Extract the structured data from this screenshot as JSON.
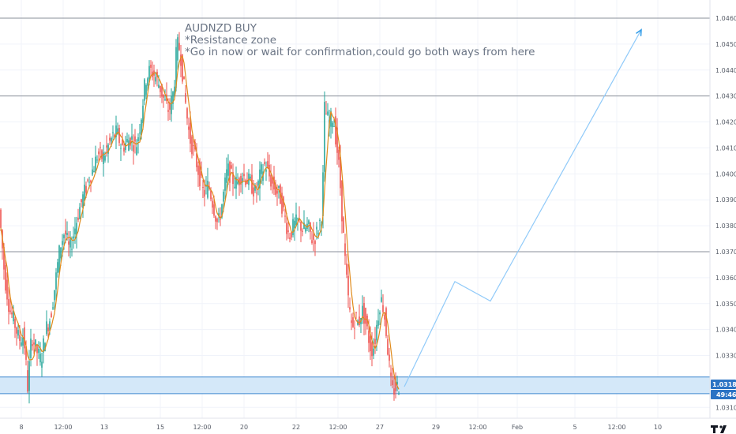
{
  "chart_data": {
    "type": "candlestick",
    "symbol": "AUDNZD",
    "annotations": [
      "AUDNZD BUY",
      "*Resistance zone",
      "*Go in now or wait for confirmation,could go both ways from here"
    ],
    "yticks": [
      "1.04600",
      "1.04500",
      "1.04400",
      "1.04300",
      "1.04200",
      "1.04100",
      "1.04000",
      "1.03900",
      "1.03800",
      "1.03700",
      "1.03600",
      "1.03500",
      "1.03400",
      "1.03300",
      "1.03100"
    ],
    "ytick_values": [
      1.046,
      1.045,
      1.044,
      1.043,
      1.042,
      1.041,
      1.04,
      1.039,
      1.038,
      1.037,
      1.036,
      1.035,
      1.034,
      1.033,
      1.031
    ],
    "ylim": [
      1.0307,
      1.04675
    ],
    "xticks": [
      {
        "label": "8",
        "slot": 27
      },
      {
        "label": "12:00",
        "slot": 80
      },
      {
        "label": "13",
        "slot": 132
      },
      {
        "label": "15",
        "slot": 203
      },
      {
        "label": "12:00",
        "slot": 256
      },
      {
        "label": "20",
        "slot": 309
      },
      {
        "label": "22",
        "slot": 375
      },
      {
        "label": "12:00",
        "slot": 428
      },
      {
        "label": "27",
        "slot": 481
      },
      {
        "label": "29",
        "slot": 552
      },
      {
        "label": "12:00",
        "slot": 605
      },
      {
        "label": "Feb",
        "slot": 655
      },
      {
        "label": "5",
        "slot": 728
      },
      {
        "label": "12:00",
        "slot": 781
      },
      {
        "label": "10",
        "slot": 833
      }
    ],
    "horizontal_levels": [
      1.046,
      1.043,
      1.037
    ],
    "support_zone": [
      1.03165,
      1.03205
    ],
    "current_price": "1.03187",
    "countdown": "49:46",
    "price_path": [
      {
        "x": 0,
        "y": 1.039
      },
      {
        "x": 8,
        "y": 1.036
      },
      {
        "x": 14,
        "y": 1.0348
      },
      {
        "x": 20,
        "y": 1.0343
      },
      {
        "x": 26,
        "y": 1.0336
      },
      {
        "x": 32,
        "y": 1.0338
      },
      {
        "x": 37,
        "y": 1.0318
      },
      {
        "x": 42,
        "y": 1.0338
      },
      {
        "x": 48,
        "y": 1.0332
      },
      {
        "x": 54,
        "y": 1.0328
      },
      {
        "x": 60,
        "y": 1.034
      },
      {
        "x": 66,
        "y": 1.0345
      },
      {
        "x": 72,
        "y": 1.0358
      },
      {
        "x": 78,
        "y": 1.0372
      },
      {
        "x": 84,
        "y": 1.0378
      },
      {
        "x": 90,
        "y": 1.037
      },
      {
        "x": 96,
        "y": 1.0378
      },
      {
        "x": 102,
        "y": 1.0386
      },
      {
        "x": 108,
        "y": 1.0392
      },
      {
        "x": 114,
        "y": 1.0398
      },
      {
        "x": 120,
        "y": 1.0402
      },
      {
        "x": 126,
        "y": 1.0408
      },
      {
        "x": 132,
        "y": 1.0406
      },
      {
        "x": 138,
        "y": 1.041
      },
      {
        "x": 144,
        "y": 1.0414
      },
      {
        "x": 150,
        "y": 1.0416
      },
      {
        "x": 156,
        "y": 1.041
      },
      {
        "x": 162,
        "y": 1.0412
      },
      {
        "x": 168,
        "y": 1.0414
      },
      {
        "x": 174,
        "y": 1.041
      },
      {
        "x": 180,
        "y": 1.042
      },
      {
        "x": 186,
        "y": 1.0436
      },
      {
        "x": 192,
        "y": 1.044
      },
      {
        "x": 198,
        "y": 1.0438
      },
      {
        "x": 204,
        "y": 1.0434
      },
      {
        "x": 210,
        "y": 1.0428
      },
      {
        "x": 216,
        "y": 1.0424
      },
      {
        "x": 222,
        "y": 1.0432
      },
      {
        "x": 226,
        "y": 1.045
      },
      {
        "x": 230,
        "y": 1.0448
      },
      {
        "x": 234,
        "y": 1.0436
      },
      {
        "x": 238,
        "y": 1.0424
      },
      {
        "x": 242,
        "y": 1.0414
      },
      {
        "x": 248,
        "y": 1.0408
      },
      {
        "x": 254,
        "y": 1.04
      },
      {
        "x": 260,
        "y": 1.0392
      },
      {
        "x": 266,
        "y": 1.0396
      },
      {
        "x": 272,
        "y": 1.0388
      },
      {
        "x": 278,
        "y": 1.038
      },
      {
        "x": 284,
        "y": 1.039
      },
      {
        "x": 290,
        "y": 1.0402
      },
      {
        "x": 296,
        "y": 1.0398
      },
      {
        "x": 302,
        "y": 1.0396
      },
      {
        "x": 308,
        "y": 1.04
      },
      {
        "x": 314,
        "y": 1.0398
      },
      {
        "x": 320,
        "y": 1.0396
      },
      {
        "x": 326,
        "y": 1.0392
      },
      {
        "x": 332,
        "y": 1.04
      },
      {
        "x": 338,
        "y": 1.0404
      },
      {
        "x": 344,
        "y": 1.0398
      },
      {
        "x": 350,
        "y": 1.0394
      },
      {
        "x": 356,
        "y": 1.0392
      },
      {
        "x": 362,
        "y": 1.0384
      },
      {
        "x": 368,
        "y": 1.0376
      },
      {
        "x": 374,
        "y": 1.038
      },
      {
        "x": 380,
        "y": 1.0382
      },
      {
        "x": 386,
        "y": 1.0378
      },
      {
        "x": 392,
        "y": 1.038
      },
      {
        "x": 398,
        "y": 1.0374
      },
      {
        "x": 404,
        "y": 1.0378
      },
      {
        "x": 410,
        "y": 1.0385
      },
      {
        "x": 413,
        "y": 1.0425
      },
      {
        "x": 418,
        "y": 1.042
      },
      {
        "x": 424,
        "y": 1.0422
      },
      {
        "x": 428,
        "y": 1.0412
      },
      {
        "x": 432,
        "y": 1.04
      },
      {
        "x": 436,
        "y": 1.038
      },
      {
        "x": 440,
        "y": 1.0362
      },
      {
        "x": 444,
        "y": 1.0348
      },
      {
        "x": 448,
        "y": 1.034
      },
      {
        "x": 452,
        "y": 1.0345
      },
      {
        "x": 456,
        "y": 1.0342
      },
      {
        "x": 460,
        "y": 1.0348
      },
      {
        "x": 464,
        "y": 1.0344
      },
      {
        "x": 468,
        "y": 1.0338
      },
      {
        "x": 472,
        "y": 1.0332
      },
      {
        "x": 476,
        "y": 1.0334
      },
      {
        "x": 480,
        "y": 1.0344
      },
      {
        "x": 484,
        "y": 1.0352
      },
      {
        "x": 488,
        "y": 1.0348
      },
      {
        "x": 492,
        "y": 1.0336
      },
      {
        "x": 496,
        "y": 1.0322
      },
      {
        "x": 498,
        "y": 1.0316
      },
      {
        "x": 505,
        "y": 1.0318
      }
    ],
    "projection": [
      {
        "x": 512,
        "y": 1.0318
      },
      {
        "x": 576,
        "y": 1.03585
      },
      {
        "x": 621,
        "y": 1.0351
      },
      {
        "x": 812,
        "y": 1.04555
      }
    ]
  },
  "colors": {
    "up": "#26a69a",
    "down": "#ef5350",
    "ma": "#e08a1a",
    "hline": "#8a8f99",
    "zone_fill": "#cfe5f8",
    "zone_line": "#3d87d0",
    "projection": "#90caf9",
    "badge": "#2b73c4",
    "text": "#6b7585"
  },
  "branding": {
    "logo": "tradingview-logo"
  }
}
